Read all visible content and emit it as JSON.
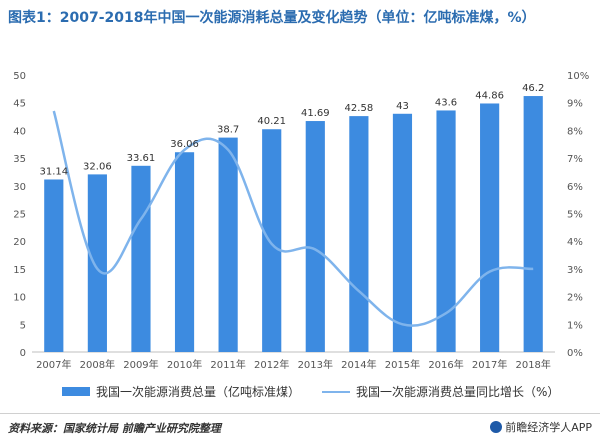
{
  "title": "图表1：2007-2018年中国一次能源消耗总量及变化趋势（单位：亿吨标准煤，%）",
  "source": "资料来源：国家统计局 前瞻产业研究院整理",
  "brand": "前瞻经济学人APP",
  "chart_data": {
    "type": "bar",
    "categories": [
      "2007年",
      "2008年",
      "2009年",
      "2010年",
      "2011年",
      "2012年",
      "2013年",
      "2014年",
      "2015年",
      "2016年",
      "2017年",
      "2018年"
    ],
    "series": [
      {
        "name": "我国一次能源消费总量（亿吨标准煤）",
        "type": "bar",
        "axis": "left",
        "values": [
          31.14,
          32.06,
          33.61,
          36.06,
          38.7,
          40.21,
          41.69,
          42.58,
          43,
          43.6,
          44.86,
          46.2
        ],
        "labels": [
          "31.14",
          "32.06",
          "33.61",
          "36.06",
          "38.7",
          "40.21",
          "41.69",
          "42.58",
          "43",
          "43.6",
          "44.86",
          "46.2"
        ],
        "color": "#3d8be0"
      },
      {
        "name": "我国一次能源消费总量同比增长（%）",
        "type": "line",
        "axis": "right",
        "values": [
          8.7,
          3.0,
          4.8,
          7.3,
          7.3,
          3.9,
          3.7,
          2.2,
          1.0,
          1.4,
          2.9,
          3.0
        ],
        "color": "#7fb4ec"
      }
    ],
    "y_left": {
      "min": 0,
      "max": 50,
      "ticks": [
        "0",
        "5",
        "10",
        "15",
        "20",
        "25",
        "30",
        "35",
        "40",
        "45",
        "50"
      ]
    },
    "y_right": {
      "min": 0,
      "max": 10,
      "ticks": [
        "0%",
        "1%",
        "2%",
        "3%",
        "4%",
        "5%",
        "6%",
        "7%",
        "8%",
        "9%",
        "10%"
      ]
    },
    "legend_position": "bottom",
    "grid": false
  }
}
